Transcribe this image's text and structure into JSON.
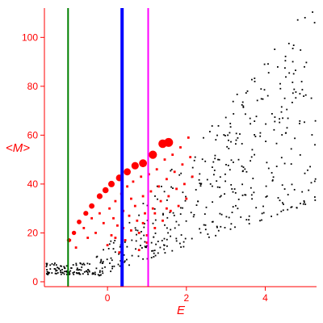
{
  "chart_data": {
    "type": "scatter",
    "title": "",
    "xlabel": "E",
    "ylabel": "<M>",
    "xlim": [
      -1.6,
      5.3
    ],
    "ylim": [
      -2,
      112
    ],
    "xticks": [
      0,
      2,
      4
    ],
    "yticks": [
      0,
      20,
      40,
      60,
      80,
      100
    ],
    "grid": false,
    "axis_color": "#ff0000",
    "vertical_lines": [
      {
        "x": -1.0,
        "color": "#008000",
        "width": "thin"
      },
      {
        "x": 0.37,
        "color": "#0000ff",
        "width": "thick"
      },
      {
        "x": 1.03,
        "color": "#ff00ff",
        "width": "thin"
      }
    ],
    "series": [
      {
        "color": "#ff0000",
        "marker": "large-dot",
        "points": [
          [
            -0.98,
            17
          ],
          [
            -0.85,
            20
          ],
          [
            -0.72,
            24.5
          ],
          [
            -0.55,
            28
          ],
          [
            -0.4,
            31
          ],
          [
            -0.2,
            35
          ],
          [
            -0.05,
            37.5
          ],
          [
            0.1,
            40
          ],
          [
            0.3,
            42.5
          ],
          [
            0.5,
            45
          ],
          [
            0.7,
            47.5
          ],
          [
            0.9,
            48.5
          ],
          [
            1.15,
            52
          ],
          [
            1.4,
            56.5
          ],
          [
            1.55,
            57
          ]
        ]
      },
      {
        "color": "#ff0000",
        "marker": "small-square",
        "points": [
          [
            -0.95,
            17
          ],
          [
            -0.8,
            14
          ],
          [
            -0.6,
            22
          ],
          [
            -0.5,
            18
          ],
          [
            -0.4,
            26
          ],
          [
            -0.3,
            20
          ],
          [
            -0.2,
            28
          ],
          [
            -0.1,
            24
          ],
          [
            0.0,
            15
          ],
          [
            0.05,
            30
          ],
          [
            0.1,
            19
          ],
          [
            0.15,
            26
          ],
          [
            0.2,
            33
          ],
          [
            0.25,
            23
          ],
          [
            0.3,
            12
          ],
          [
            0.35,
            36
          ],
          [
            0.4,
            29
          ],
          [
            0.45,
            17
          ],
          [
            0.5,
            39
          ],
          [
            0.55,
            27
          ],
          [
            0.6,
            21
          ],
          [
            0.65,
            41
          ],
          [
            0.7,
            31
          ],
          [
            0.75,
            25
          ],
          [
            0.8,
            13
          ],
          [
            0.85,
            43
          ],
          [
            0.9,
            35
          ],
          [
            0.95,
            28
          ],
          [
            1.0,
            19
          ],
          [
            1.05,
            44
          ],
          [
            1.1,
            37
          ],
          [
            1.15,
            30
          ],
          [
            1.2,
            22
          ],
          [
            1.25,
            46
          ],
          [
            1.3,
            39
          ],
          [
            1.35,
            33
          ],
          [
            1.4,
            25
          ],
          [
            1.45,
            50
          ],
          [
            1.5,
            42
          ],
          [
            1.55,
            35
          ],
          [
            1.6,
            29
          ],
          [
            1.65,
            52
          ],
          [
            1.7,
            45
          ],
          [
            1.75,
            38
          ],
          [
            1.8,
            31
          ],
          [
            1.85,
            55
          ],
          [
            1.9,
            48
          ],
          [
            1.95,
            40
          ],
          [
            2.0,
            34
          ],
          [
            2.05,
            59
          ],
          [
            2.1,
            51
          ],
          [
            2.15,
            43
          ],
          [
            0.6,
            34
          ],
          [
            0.9,
            24
          ],
          [
            1.2,
            28
          ],
          [
            1.5,
            30
          ],
          [
            0.2,
            18
          ],
          [
            0.4,
            22
          ],
          [
            0.8,
            20
          ],
          [
            1.0,
            16
          ]
        ]
      }
    ]
  }
}
